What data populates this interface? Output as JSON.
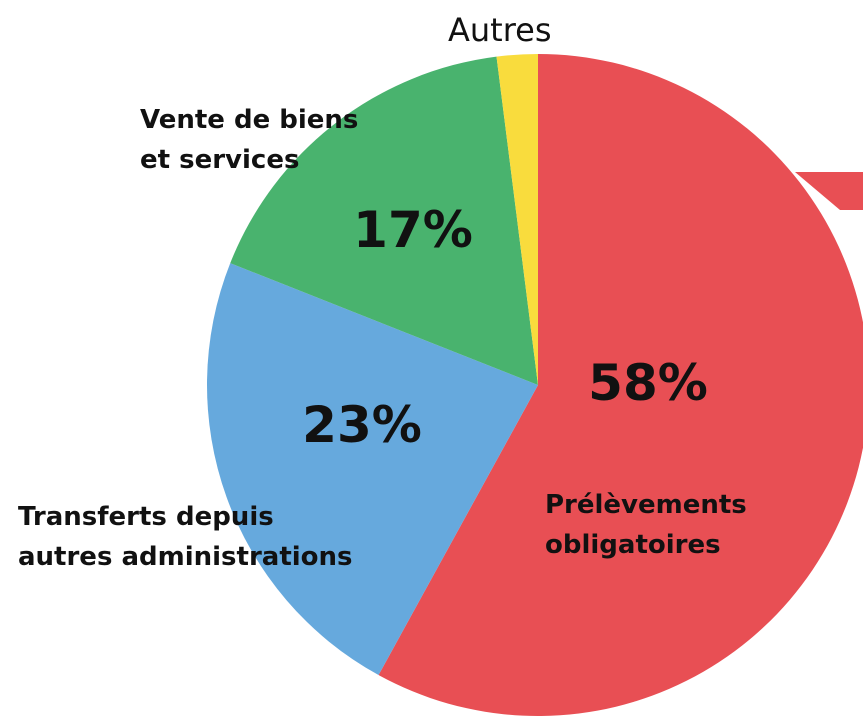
{
  "chart_data": {
    "type": "pie",
    "categories": [
      "Prélèvements\nobligatoires",
      "Transferts depuis\nautres administrations",
      "Vente de biens\net services",
      "Autres"
    ],
    "values": [
      58,
      23,
      17,
      2
    ],
    "value_labels": [
      "58%",
      "23%",
      "17%",
      null
    ],
    "colors": [
      "#e84f54",
      "#66a9dd",
      "#49b36e",
      "#f9dc3d"
    ]
  }
}
